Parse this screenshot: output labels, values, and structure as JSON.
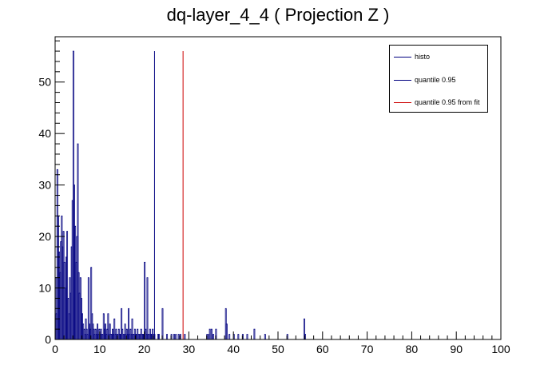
{
  "chart_data": {
    "type": "bar",
    "title": "dq-layer_4_4 ( Projection Z )",
    "xlabel": "",
    "ylabel": "",
    "xlim": [
      0,
      100
    ],
    "ylim": [
      0,
      58.8
    ],
    "x_ticks": [
      0,
      10,
      20,
      30,
      40,
      50,
      60,
      70,
      80,
      90,
      100
    ],
    "y_ticks": [
      0,
      10,
      20,
      30,
      40,
      50
    ],
    "grid": false,
    "legend_position": "top-right",
    "histogram": {
      "name": "histo",
      "bin_width": 0.2,
      "color": "#000080",
      "bins": [
        [
          0.0,
          12
        ],
        [
          0.2,
          5
        ],
        [
          0.4,
          33
        ],
        [
          0.6,
          24
        ],
        [
          0.8,
          17
        ],
        [
          1.0,
          13
        ],
        [
          1.2,
          19
        ],
        [
          1.4,
          24
        ],
        [
          1.6,
          18
        ],
        [
          1.8,
          21
        ],
        [
          2.0,
          15
        ],
        [
          2.2,
          10
        ],
        [
          2.4,
          16
        ],
        [
          2.6,
          21
        ],
        [
          2.8,
          8
        ],
        [
          3.0,
          5
        ],
        [
          3.2,
          12
        ],
        [
          3.4,
          9
        ],
        [
          3.6,
          18
        ],
        [
          3.8,
          27
        ],
        [
          4.0,
          56
        ],
        [
          4.2,
          30
        ],
        [
          4.4,
          22
        ],
        [
          4.6,
          15
        ],
        [
          4.8,
          20
        ],
        [
          5.0,
          38
        ],
        [
          5.2,
          13
        ],
        [
          5.4,
          9
        ],
        [
          5.6,
          12
        ],
        [
          5.8,
          8
        ],
        [
          6.0,
          5
        ],
        [
          6.2,
          3
        ],
        [
          6.4,
          2
        ],
        [
          6.6,
          1
        ],
        [
          6.8,
          4
        ],
        [
          7.0,
          2
        ],
        [
          7.2,
          1
        ],
        [
          7.4,
          12
        ],
        [
          7.6,
          3
        ],
        [
          7.8,
          2
        ],
        [
          8.0,
          14
        ],
        [
          8.2,
          5
        ],
        [
          8.4,
          3
        ],
        [
          8.6,
          2
        ],
        [
          8.8,
          1
        ],
        [
          9.0,
          2
        ],
        [
          9.2,
          1
        ],
        [
          9.4,
          3
        ],
        [
          9.6,
          1
        ],
        [
          9.8,
          2
        ],
        [
          10.0,
          1
        ],
        [
          10.2,
          2
        ],
        [
          10.4,
          1
        ],
        [
          10.6,
          1
        ],
        [
          10.8,
          5
        ],
        [
          11.0,
          2
        ],
        [
          11.2,
          3
        ],
        [
          11.4,
          1
        ],
        [
          11.6,
          2
        ],
        [
          11.8,
          5
        ],
        [
          12.0,
          1
        ],
        [
          12.2,
          3
        ],
        [
          12.4,
          1
        ],
        [
          12.6,
          1
        ],
        [
          12.8,
          2
        ],
        [
          13.0,
          1
        ],
        [
          13.2,
          4
        ],
        [
          13.4,
          1
        ],
        [
          13.6,
          2
        ],
        [
          13.8,
          1
        ],
        [
          14.0,
          1
        ],
        [
          14.2,
          2
        ],
        [
          14.4,
          1
        ],
        [
          14.6,
          1
        ],
        [
          14.8,
          6
        ],
        [
          15.0,
          2
        ],
        [
          15.2,
          1
        ],
        [
          15.4,
          1
        ],
        [
          15.6,
          3
        ],
        [
          15.8,
          1
        ],
        [
          16.0,
          2
        ],
        [
          16.2,
          1
        ],
        [
          16.4,
          6
        ],
        [
          16.6,
          1
        ],
        [
          16.8,
          2
        ],
        [
          17.0,
          1
        ],
        [
          17.2,
          4
        ],
        [
          17.4,
          1
        ],
        [
          17.6,
          1
        ],
        [
          17.8,
          2
        ],
        [
          18.0,
          1
        ],
        [
          18.2,
          1
        ],
        [
          18.4,
          2
        ],
        [
          18.6,
          1
        ],
        [
          18.8,
          1
        ],
        [
          19.0,
          1
        ],
        [
          19.2,
          2
        ],
        [
          19.4,
          1
        ],
        [
          19.6,
          1
        ],
        [
          19.8,
          1
        ],
        [
          20.0,
          15
        ],
        [
          20.2,
          2
        ],
        [
          20.4,
          1
        ],
        [
          20.6,
          12
        ],
        [
          20.8,
          1
        ],
        [
          21.0,
          1
        ],
        [
          21.2,
          2
        ],
        [
          21.4,
          1
        ],
        [
          21.6,
          1
        ],
        [
          21.8,
          2
        ],
        [
          22.0,
          1
        ],
        [
          22.2,
          1
        ],
        [
          23.0,
          1
        ],
        [
          23.2,
          1
        ],
        [
          24.0,
          6
        ],
        [
          25.0,
          1
        ],
        [
          26.0,
          1
        ],
        [
          26.6,
          1
        ],
        [
          27.0,
          1
        ],
        [
          27.6,
          1
        ],
        [
          28.0,
          1
        ],
        [
          29.0,
          1
        ],
        [
          34.0,
          1
        ],
        [
          34.4,
          1
        ],
        [
          34.6,
          2
        ],
        [
          35.0,
          2
        ],
        [
          35.4,
          1
        ],
        [
          36.0,
          2
        ],
        [
          38.2,
          6
        ],
        [
          38.4,
          3
        ],
        [
          39.0,
          1
        ],
        [
          40.0,
          1
        ],
        [
          41.0,
          1
        ],
        [
          42.0,
          1
        ],
        [
          43.0,
          1
        ],
        [
          44.6,
          2
        ],
        [
          47.0,
          1
        ],
        [
          52.0,
          1
        ],
        [
          55.8,
          4
        ],
        [
          56.0,
          1
        ]
      ]
    },
    "markers": [
      {
        "name": "quantile 0.95",
        "x": 22.3,
        "y": 56,
        "color": "#000080"
      },
      {
        "name": "quantile 0.95 from fit",
        "x": 28.7,
        "y": 56,
        "color": "#cc0000"
      }
    ]
  }
}
